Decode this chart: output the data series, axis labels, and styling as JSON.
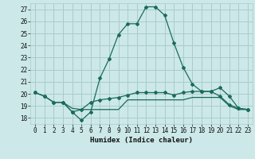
{
  "xlabel": "Humidex (Indice chaleur)",
  "xlim": [
    -0.5,
    23.5
  ],
  "ylim": [
    17.5,
    27.5
  ],
  "xticks": [
    0,
    1,
    2,
    3,
    4,
    5,
    6,
    7,
    8,
    9,
    10,
    11,
    12,
    13,
    14,
    15,
    16,
    17,
    18,
    19,
    20,
    21,
    22,
    23
  ],
  "yticks": [
    18,
    19,
    20,
    21,
    22,
    23,
    24,
    25,
    26,
    27
  ],
  "background_color": "#cce8e8",
  "grid_color": "#aacccc",
  "line_color": "#1a6b5a",
  "line1_x": [
    0,
    1,
    2,
    3,
    4,
    5,
    6,
    7,
    8,
    9,
    10,
    11,
    12,
    13,
    14,
    15,
    16,
    17,
    18,
    19,
    20,
    21,
    22,
    23
  ],
  "line1_y": [
    20.1,
    19.8,
    19.3,
    19.3,
    18.5,
    17.8,
    18.5,
    21.3,
    22.9,
    24.9,
    25.8,
    25.8,
    27.2,
    27.2,
    26.5,
    24.2,
    22.2,
    20.8,
    20.2,
    20.2,
    20.5,
    19.8,
    18.8,
    18.7
  ],
  "line2_x": [
    0,
    1,
    2,
    3,
    4,
    5,
    6,
    7,
    8,
    9,
    10,
    11,
    12,
    13,
    14,
    15,
    16,
    17,
    18,
    19,
    20,
    21,
    22,
    23
  ],
  "line2_y": [
    20.1,
    19.8,
    19.3,
    19.3,
    18.5,
    18.7,
    19.3,
    19.5,
    19.6,
    19.7,
    19.9,
    20.1,
    20.1,
    20.1,
    20.1,
    19.9,
    20.1,
    20.2,
    20.2,
    20.2,
    19.8,
    19.1,
    18.8,
    18.7
  ],
  "line3_x": [
    2,
    3,
    4,
    5,
    6,
    7,
    8,
    9,
    10,
    11,
    12,
    13,
    14,
    15,
    16,
    17,
    18,
    19,
    20,
    21,
    22,
    23
  ],
  "line3_y": [
    19.3,
    19.3,
    18.8,
    18.7,
    18.7,
    18.7,
    18.7,
    18.7,
    19.5,
    19.5,
    19.5,
    19.5,
    19.5,
    19.5,
    19.5,
    19.7,
    19.7,
    19.7,
    19.7,
    19.0,
    18.7,
    18.7
  ]
}
